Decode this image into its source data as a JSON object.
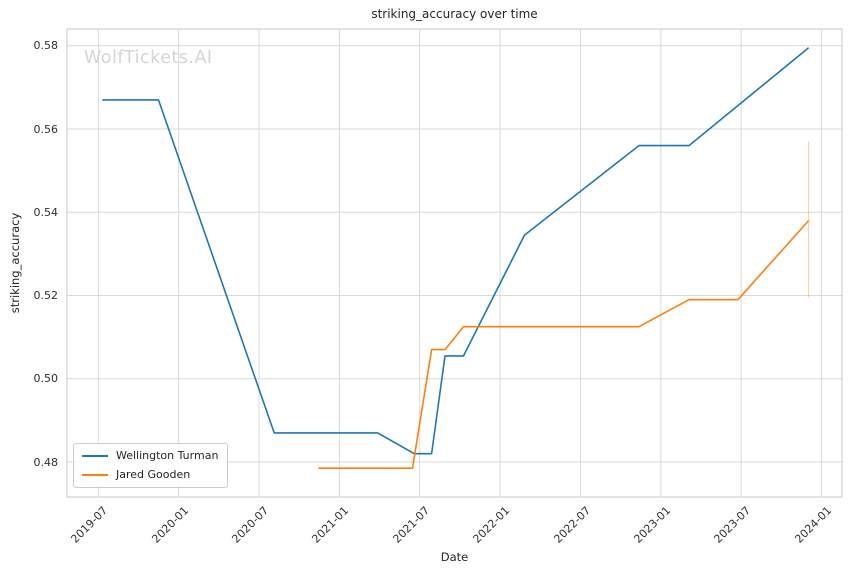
{
  "watermark": "WolfTickets.AI",
  "colors": {
    "background": "#ffffff",
    "grid": "#d9d9d9",
    "spine": "#c9c9c9",
    "text": "#262626",
    "tick_text": "#303030",
    "watermark": "#d5d5d5",
    "series1": "#1f77b4",
    "series2": "#ff7f0e"
  },
  "chart_data": {
    "type": "line",
    "title": "striking_accuracy over time",
    "xlabel": "Date",
    "ylabel": "striking_accuracy",
    "grid": true,
    "legend_position": "lower left",
    "xticks": [
      "2019-07",
      "2020-01",
      "2020-07",
      "2021-01",
      "2021-07",
      "2022-01",
      "2022-07",
      "2023-01",
      "2023-07",
      "2024-01"
    ],
    "yticks": [
      "0.48",
      "0.50",
      "0.52",
      "0.54",
      "0.56",
      "0.58"
    ],
    "xlim": [
      "2019-04",
      "2024-02"
    ],
    "ylim": [
      0.4716,
      0.584
    ],
    "series": [
      {
        "name": "Wellington Turman",
        "color": "#1f77b4",
        "points": [
          [
            "2019-07-10",
            0.567
          ],
          [
            "2019-11-16",
            0.567
          ],
          [
            "2020-08-05",
            0.487
          ],
          [
            "2021-03-27",
            0.487
          ],
          [
            "2021-06-19",
            0.482
          ],
          [
            "2021-07-28",
            0.482
          ],
          [
            "2021-08-28",
            0.5055
          ],
          [
            "2021-10-09",
            0.5055
          ],
          [
            "2022-02-26",
            0.5345
          ],
          [
            "2022-11-12",
            0.556
          ],
          [
            "2023-03-04",
            0.556
          ],
          [
            "2023-12-02",
            0.5795
          ]
        ]
      },
      {
        "name": "Jared Gooden",
        "color": "#ff7f0e",
        "points": [
          [
            "2020-11-14",
            0.4785
          ],
          [
            "2021-06-15",
            0.4785
          ],
          [
            "2021-07-28",
            0.507
          ],
          [
            "2021-08-28",
            0.507
          ],
          [
            "2021-10-09",
            0.5125
          ],
          [
            "2022-11-12",
            0.5125
          ],
          [
            "2023-03-04",
            0.519
          ],
          [
            "2023-06-24",
            0.519
          ],
          [
            "2023-12-02",
            0.538
          ]
        ]
      }
    ],
    "annotations": [
      {
        "type": "vertical-segment",
        "x": "2023-12-02",
        "y1": 0.5195,
        "y2": 0.557,
        "color": "#ff7f0e",
        "opacity": 0.35
      }
    ]
  }
}
